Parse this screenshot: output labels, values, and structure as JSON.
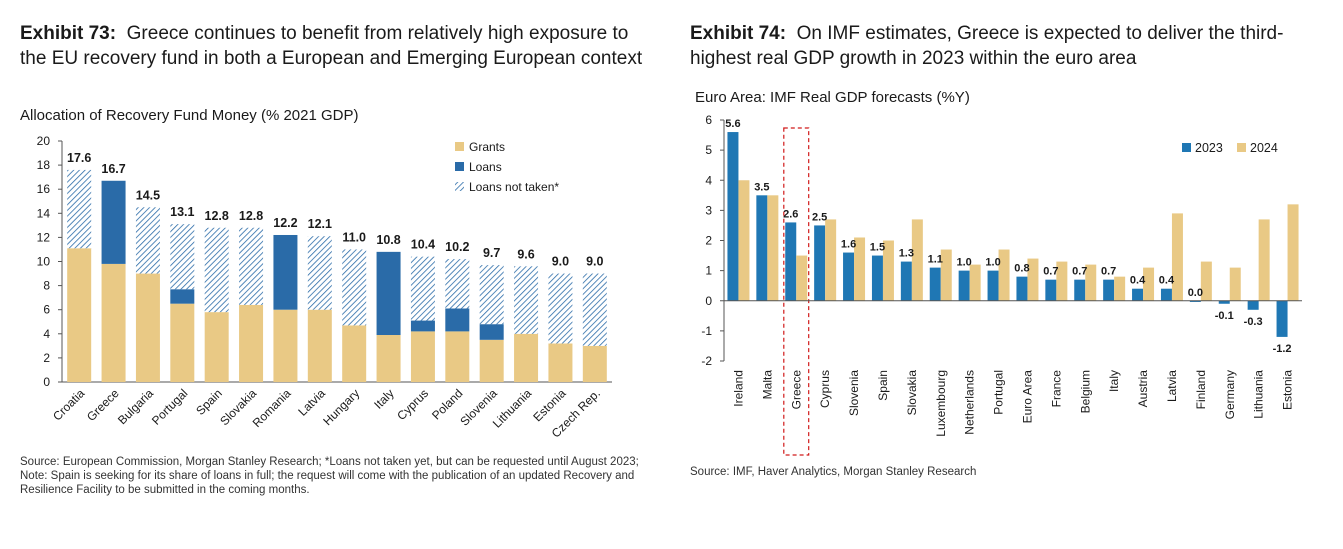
{
  "exhibit73": {
    "label": "Exhibit 73:",
    "title": "Greece continues to benefit from relatively high exposure to the EU recovery fund in both a European and Emerging European context",
    "source": "Source: European Commission, Morgan Stanley Research; *Loans not taken yet, but can be requested until August 2023; Note: Spain is seeking for its share of loans in full; the request will come with the publication of an updated Recovery and Resilience Facility to be submitted in the coming months."
  },
  "exhibit74": {
    "label": "Exhibit 74:",
    "title": "On IMF estimates, Greece is expected to deliver the third-highest real GDP growth in 2023 within the euro area",
    "source": "Source: IMF, Haver Analytics, Morgan Stanley Research"
  },
  "chart_data": [
    {
      "type": "bar",
      "stacked": true,
      "title": "Allocation of Recovery Fund Money (% 2021 GDP)",
      "categories": [
        "Croatia",
        "Greece",
        "Bulgaria",
        "Portugal",
        "Spain",
        "Slovakia",
        "Romania",
        "Latvia",
        "Hungary",
        "Italy",
        "Cyprus",
        "Poland",
        "Slovenia",
        "Lithuania",
        "Estonia",
        "Czech Rep."
      ],
      "series": [
        {
          "name": "Grants",
          "color": "#e9c985",
          "values": [
            11.1,
            9.8,
            9.0,
            6.5,
            5.8,
            6.4,
            6.0,
            6.0,
            4.7,
            3.9,
            4.2,
            4.2,
            3.5,
            4.0,
            3.2,
            3.0
          ]
        },
        {
          "name": "Loans",
          "color": "#2a6ba8",
          "values": [
            0,
            6.9,
            0,
            1.2,
            0,
            0,
            6.2,
            0,
            0,
            6.9,
            0.9,
            1.9,
            1.3,
            0,
            0,
            0
          ]
        },
        {
          "name": "Loans not taken*",
          "color": "#2a6ba8",
          "pattern": "hatch",
          "values": [
            6.5,
            0,
            5.5,
            5.4,
            7.0,
            6.4,
            0,
            6.1,
            6.3,
            0,
            5.3,
            4.1,
            4.9,
            5.6,
            5.8,
            6.0
          ]
        }
      ],
      "totals": [
        "17.6",
        "16.7",
        "14.5",
        "13.1",
        "12.8",
        "12.8",
        "12.2",
        "12.1",
        "11.0",
        "10.8",
        "10.4",
        "10.2",
        "9.7",
        "9.6",
        "9.0",
        "9.0"
      ],
      "ylim": [
        0,
        20
      ],
      "yticks": [
        "0",
        "2",
        "4",
        "6",
        "8",
        "10",
        "12",
        "14",
        "16",
        "18",
        "20"
      ],
      "legend_position": "top-right"
    },
    {
      "type": "bar",
      "title": "Euro Area: IMF Real GDP forecasts (%Y)",
      "categories": [
        "Ireland",
        "Malta",
        "Greece",
        "Cyprus",
        "Slovenia",
        "Spain",
        "Slovakia",
        "Luxembourg",
        "Netherlands",
        "Portugal",
        "Euro Area",
        "France",
        "Belgium",
        "Italy",
        "Austria",
        "Latvia",
        "Finland",
        "Germany",
        "Lithuania",
        "Estonia"
      ],
      "series": [
        {
          "name": "2023",
          "color": "#1f77b4",
          "values": [
            5.6,
            3.5,
            2.6,
            2.5,
            1.6,
            1.5,
            1.3,
            1.1,
            1.0,
            1.0,
            0.8,
            0.7,
            0.7,
            0.7,
            0.4,
            0.4,
            0.0,
            -0.1,
            -0.3,
            -1.2
          ]
        },
        {
          "name": "2024",
          "color": "#e9c985",
          "values": [
            4.0,
            3.5,
            1.5,
            2.7,
            2.1,
            2.0,
            2.7,
            1.7,
            1.2,
            1.7,
            1.4,
            1.3,
            1.2,
            0.8,
            1.1,
            2.9,
            1.3,
            1.1,
            2.7,
            3.2
          ]
        }
      ],
      "labels_2023": [
        "5.6",
        "3.5",
        "2.6",
        "2.5",
        "1.6",
        "1.5",
        "1.3",
        "1.1",
        "1.0",
        "1.0",
        "0.8",
        "0.7",
        "0.7",
        "0.7",
        "0.4",
        "0.4",
        "0.0",
        "-0.1",
        "-0.3",
        "-1.2"
      ],
      "ylim": [
        -2,
        6
      ],
      "yticks": [
        "-2",
        "-1",
        "0",
        "1",
        "2",
        "3",
        "4",
        "5",
        "6"
      ],
      "highlight": "Greece",
      "legend_position": "top-right"
    }
  ]
}
